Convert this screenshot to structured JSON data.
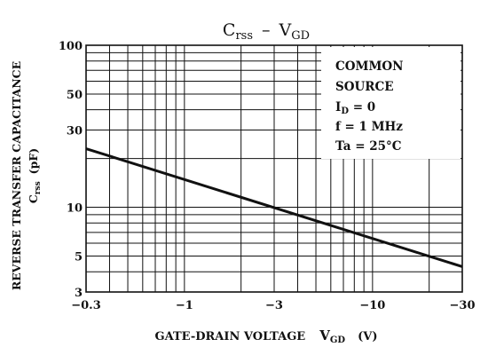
{
  "chart_data": {
    "type": "line",
    "title": "C",
    "title_sub": "rss",
    "title_dash": "–",
    "title_v": "V",
    "title_v_sub": "GD",
    "xlabel": "GATE-DRAIN VOLTAGE",
    "xlabel_v": "V",
    "xlabel_v_sub": "GD",
    "xlabel_unit": "(V)",
    "ylabel_line1": "REVERSE TRANSFER CAPACITANCE",
    "ylabel_line2_c": "C",
    "ylabel_line2_sub": "rss",
    "ylabel_line2_unit": "(pF)",
    "x_scale": "log",
    "y_scale": "log",
    "x_abs_range": [
      0.3,
      30
    ],
    "y_range": [
      3,
      100
    ],
    "x_ticks": [
      {
        "v": 0.3,
        "label": "−0.3"
      },
      {
        "v": 1,
        "label": "−1"
      },
      {
        "v": 3,
        "label": "−3"
      },
      {
        "v": 10,
        "label": "−10"
      },
      {
        "v": 30,
        "label": "−30"
      }
    ],
    "y_ticks": [
      {
        "v": 3,
        "label": "3"
      },
      {
        "v": 5,
        "label": "5"
      },
      {
        "v": 10,
        "label": "10"
      },
      {
        "v": 30,
        "label": "30"
      },
      {
        "v": 50,
        "label": "50"
      },
      {
        "v": 100,
        "label": "100"
      }
    ],
    "x_grid": [
      0.3,
      0.4,
      0.5,
      0.6,
      0.7,
      0.8,
      0.9,
      1,
      2,
      3,
      4,
      5,
      6,
      7,
      8,
      9,
      10,
      20,
      30
    ],
    "y_grid": [
      3,
      4,
      5,
      6,
      7,
      8,
      9,
      10,
      20,
      30,
      40,
      50,
      60,
      70,
      80,
      90,
      100
    ],
    "grid": true,
    "series": [
      {
        "x": [
          -0.3,
          -30
        ],
        "y": [
          23,
          4.3
        ],
        "color": "#111111"
      }
    ],
    "conditions": {
      "line1": "COMMON",
      "line2": "SOURCE",
      "line3_i": "I",
      "line3_sub": "D",
      "line3_rest": " = 0",
      "line4": "f = 1 MHz",
      "line5": "Ta = 25°C"
    }
  }
}
